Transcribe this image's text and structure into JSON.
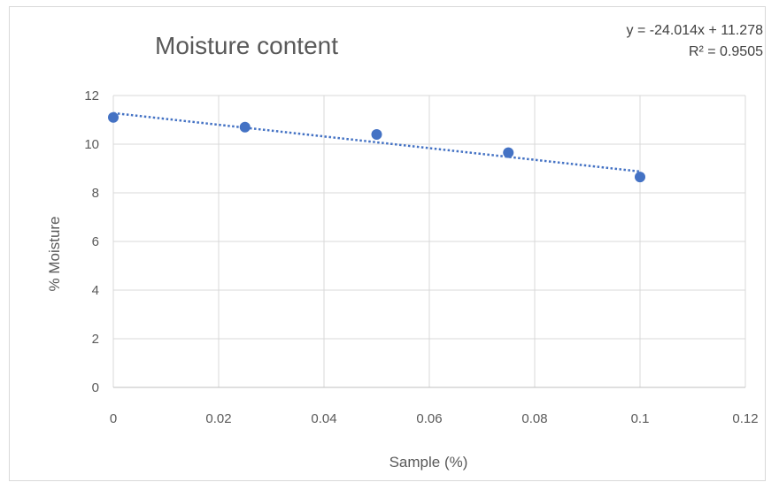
{
  "chart_data": {
    "type": "scatter",
    "title": "Moisture content",
    "xlabel": "Sample (%)",
    "ylabel": "% Moisture",
    "xlim": [
      0,
      0.12
    ],
    "ylim": [
      0,
      12
    ],
    "xticks": [
      "0",
      "0.02",
      "0.04",
      "0.06",
      "0.08",
      "0.1",
      "0.12"
    ],
    "yticks": [
      "0",
      "2",
      "4",
      "6",
      "8",
      "10",
      "12"
    ],
    "grid": true,
    "legend": "none",
    "points": [
      {
        "x": 0,
        "y": 11.1
      },
      {
        "x": 0.025,
        "y": 10.7
      },
      {
        "x": 0.05,
        "y": 10.4
      },
      {
        "x": 0.075,
        "y": 9.65
      },
      {
        "x": 0.1,
        "y": 8.65
      }
    ],
    "trendline": {
      "type": "linear",
      "style": "dotted",
      "slope": -24.014,
      "intercept": 11.278,
      "x_range": [
        0,
        0.1
      ]
    },
    "annotations": [
      "y = -24.014x + 11.278",
      "R² = 0.9505"
    ],
    "colors": {
      "marker": "#4472c4",
      "trendline": "#4472c4",
      "grid": "#d9d9d9"
    }
  }
}
